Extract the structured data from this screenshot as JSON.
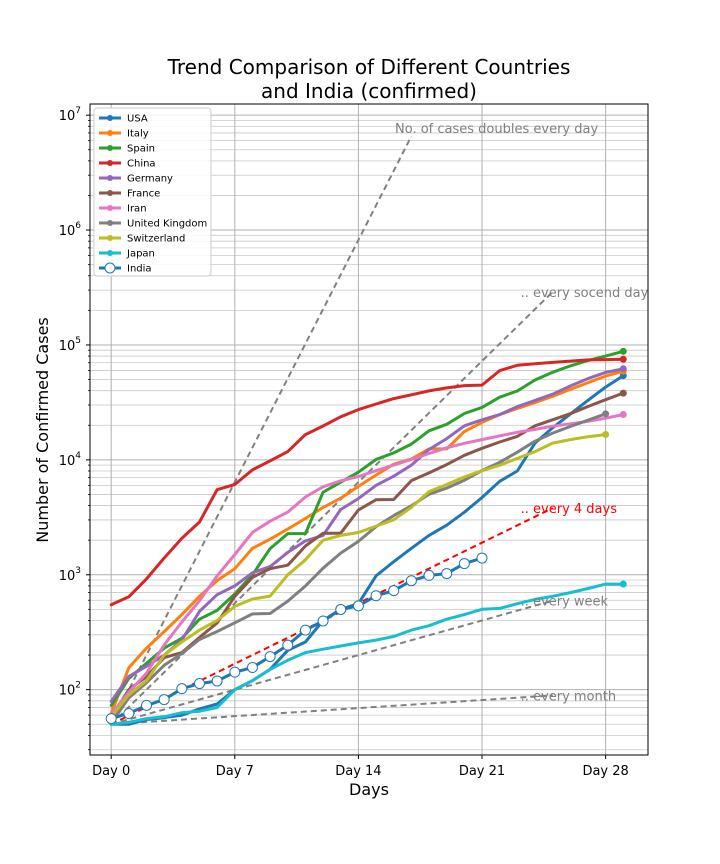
{
  "chart_data": {
    "type": "line",
    "title_lines": [
      "Trend Comparison of Different Countries",
      "and India (confirmed)"
    ],
    "xlabel": "Days",
    "ylabel": "Number of Confirmed Cases",
    "yscale": "log",
    "xlim": [
      -1.2,
      30.4
    ],
    "ylim": [
      27,
      12500000
    ],
    "grid": true,
    "legend_position": "upper-left",
    "x_ticks": [
      {
        "value": 0,
        "label": "Day 0"
      },
      {
        "value": 7,
        "label": "Day 7"
      },
      {
        "value": 14,
        "label": "Day 14"
      },
      {
        "value": 21,
        "label": "Day 21"
      },
      {
        "value": 28,
        "label": "Day 28"
      }
    ],
    "y_ticks": [
      {
        "value": 100,
        "base": "10",
        "exp": "2"
      },
      {
        "value": 1000,
        "base": "10",
        "exp": "3"
      },
      {
        "value": 10000,
        "base": "10",
        "exp": "4"
      },
      {
        "value": 100000,
        "base": "10",
        "exp": "5"
      },
      {
        "value": 1000000,
        "base": "10",
        "exp": "6"
      },
      {
        "value": 10000000,
        "base": "10",
        "exp": "7"
      }
    ],
    "series": [
      {
        "name": "USA",
        "color": "#1f77b4",
        "x": [
          0,
          1,
          2,
          3,
          4,
          5,
          6,
          7,
          8,
          9,
          10,
          11,
          12,
          13,
          14,
          15,
          16,
          17,
          18,
          19,
          20,
          21,
          22,
          23,
          24,
          25,
          26,
          27,
          28,
          29
        ],
        "values": [
          50,
          50,
          55,
          57,
          60,
          68,
          75,
          100,
          120,
          150,
          220,
          260,
          400,
          500,
          560,
          980,
          1300,
          1700,
          2200,
          2700,
          3500,
          4700,
          6500,
          8000,
          14000,
          19000,
          25000,
          33000,
          43000,
          54000
        ]
      },
      {
        "name": "Italy",
        "color": "#ff7f0e",
        "x": [
          0,
          1,
          2,
          3,
          4,
          5,
          6,
          7,
          8,
          9,
          10,
          11,
          12,
          13,
          14,
          15,
          16,
          17,
          18,
          19,
          20,
          21,
          22,
          23,
          24,
          25,
          26,
          27,
          28,
          29
        ],
        "values": [
          62,
          155,
          230,
          320,
          450,
          650,
          890,
          1130,
          1700,
          2040,
          2500,
          3090,
          3860,
          4640,
          5880,
          7380,
          9170,
          10150,
          12460,
          12460,
          17660,
          21160,
          24750,
          27980,
          31510,
          35710,
          41040,
          47020,
          53580,
          59140
        ]
      },
      {
        "name": "Spain",
        "color": "#2ca02c",
        "x": [
          0,
          1,
          2,
          3,
          4,
          5,
          6,
          7,
          8,
          9,
          10,
          11,
          12,
          13,
          14,
          15,
          16,
          17,
          18,
          19,
          20,
          21,
          22,
          23,
          24,
          25,
          26,
          27,
          28,
          29
        ],
        "values": [
          73,
          125,
          170,
          230,
          280,
          410,
          490,
          680,
          1000,
          1690,
          2280,
          2280,
          5230,
          6390,
          7800,
          10100,
          11500,
          13700,
          17900,
          20400,
          25300,
          28600,
          35100,
          39700,
          49500,
          57800,
          65700,
          73200,
          80000,
          88000
        ]
      },
      {
        "name": "China",
        "color": "#d62728",
        "x": [
          0,
          1,
          2,
          3,
          4,
          5,
          6,
          7,
          8,
          9,
          10,
          11,
          12,
          13,
          14,
          15,
          16,
          17,
          18,
          19,
          20,
          21,
          22,
          23,
          24,
          25,
          26,
          27,
          28,
          29
        ],
        "values": [
          548,
          643,
          920,
          1400,
          2070,
          2880,
          5500,
          6100,
          8200,
          9800,
          11800,
          16600,
          19700,
          23700,
          27400,
          30600,
          34100,
          36800,
          39800,
          42300,
          44300,
          44700,
          59800,
          66500,
          68500,
          70500,
          72400,
          74100,
          74600,
          75000
        ]
      },
      {
        "name": "Germany",
        "color": "#9467bd",
        "x": [
          0,
          1,
          2,
          3,
          4,
          5,
          6,
          7,
          8,
          9,
          10,
          11,
          12,
          13,
          14,
          15,
          16,
          17,
          18,
          19,
          20,
          21,
          22,
          23,
          24,
          25,
          26,
          27,
          28,
          29
        ],
        "values": [
          79,
          130,
          160,
          200,
          270,
          480,
          670,
          800,
          1040,
          1180,
          1565,
          1970,
          2200,
          3700,
          4600,
          6000,
          7200,
          9000,
          12300,
          15300,
          19800,
          22300,
          24800,
          29000,
          32900,
          37300,
          43900,
          50900,
          57700,
          62000
        ]
      },
      {
        "name": "France",
        "color": "#8c564b",
        "x": [
          0,
          1,
          2,
          3,
          4,
          5,
          6,
          7,
          8,
          9,
          10,
          11,
          12,
          13,
          14,
          15,
          16,
          17,
          18,
          19,
          20,
          21,
          22,
          23,
          24,
          25,
          26,
          27,
          28,
          29
        ],
        "values": [
          57,
          100,
          130,
          190,
          210,
          285,
          380,
          650,
          950,
          1130,
          1210,
          1780,
          2300,
          2300,
          3660,
          4500,
          4520,
          6600,
          7700,
          9100,
          10950,
          12600,
          14300,
          16000,
          19800,
          22300,
          25200,
          29100,
          33400,
          38100
        ]
      },
      {
        "name": "Iran",
        "color": "#e377c2",
        "x": [
          0,
          1,
          2,
          3,
          4,
          5,
          6,
          7,
          8,
          9,
          10,
          11,
          12,
          13,
          14,
          15,
          16,
          17,
          18,
          19,
          20,
          21,
          22,
          23,
          24,
          25,
          26,
          27,
          28,
          29
        ],
        "values": [
          61,
          95,
          139,
          245,
          388,
          593,
          978,
          1501,
          2336,
          2922,
          3513,
          4747,
          5823,
          6566,
          7161,
          8042,
          9000,
          10075,
          11364,
          12729,
          13938,
          14991,
          16169,
          17361,
          18407,
          19644,
          20610,
          21638,
          23049,
          24811
        ]
      },
      {
        "name": "United Kingdom",
        "color": "#7f7f7f",
        "x": [
          0,
          1,
          2,
          3,
          4,
          5,
          6,
          7,
          8,
          9,
          10,
          11,
          12,
          13,
          14,
          15,
          16,
          17,
          18,
          19,
          20,
          21,
          22,
          23,
          24,
          25,
          26,
          27,
          28
        ],
        "values": [
          51,
          85,
          115,
          163,
          206,
          273,
          321,
          382,
          456,
          460,
          590,
          798,
          1140,
          1543,
          1950,
          2626,
          3269,
          3983,
          5018,
          5683,
          6650,
          8077,
          9529,
          11658,
          14543,
          17089,
          19522,
          22141,
          25150
        ]
      },
      {
        "name": "Switzerland",
        "color": "#bcbd22",
        "x": [
          0,
          1,
          2,
          3,
          4,
          5,
          6,
          7,
          8,
          9,
          10,
          11,
          12,
          13,
          14,
          15,
          16,
          17,
          18,
          19,
          20,
          21,
          22,
          23,
          24,
          25,
          26,
          27,
          28
        ],
        "values": [
          58,
          90,
          120,
          200,
          260,
          330,
          400,
          530,
          615,
          652,
          1000,
          1350,
          2000,
          2200,
          2330,
          2650,
          3010,
          3860,
          5290,
          6100,
          7100,
          8050,
          8990,
          10300,
          11800,
          14000,
          15000,
          15900,
          16600
        ]
      },
      {
        "name": "Japan",
        "color": "#17becf",
        "x": [
          0,
          1,
          2,
          3,
          4,
          5,
          6,
          7,
          8,
          9,
          10,
          11,
          12,
          13,
          14,
          15,
          16,
          17,
          18,
          19,
          20,
          21,
          22,
          23,
          24,
          25,
          26,
          27,
          28,
          29
        ],
        "values": [
          50,
          52,
          56,
          58,
          63,
          65,
          70,
          100,
          120,
          150,
          180,
          210,
          225,
          240,
          255,
          270,
          290,
          330,
          360,
          410,
          450,
          500,
          510,
          560,
          610,
          650,
          700,
          760,
          830,
          830
        ]
      },
      {
        "name": "India",
        "color": "#1f77b4",
        "marker": "open-circle",
        "x": [
          0,
          1,
          2,
          3,
          4,
          5,
          6,
          7,
          8,
          9,
          10,
          11,
          12,
          13,
          14,
          15,
          16,
          17,
          18,
          19,
          20,
          21
        ],
        "values": [
          56,
          62,
          73,
          82,
          102,
          113,
          119,
          142,
          156,
          194,
          244,
          330,
          396,
          499,
          536,
          657,
          727,
          887,
          987,
          1024,
          1251,
          1397
        ]
      }
    ],
    "reference_lines": [
      {
        "label": "No. of cases doubles every day",
        "doubling_days": 1,
        "start": 50,
        "x_end": 17,
        "color": "#808080"
      },
      {
        "label": ".. every socend day",
        "doubling_days": 2,
        "start": 50,
        "x_end": 25,
        "color": "#808080"
      },
      {
        "label": ".. every 4 days",
        "doubling_days": 4,
        "start": 50,
        "x_end": 25,
        "color": "#ff0000"
      },
      {
        "label": ".. every week",
        "doubling_days": 7,
        "start": 50,
        "x_end": 25,
        "color": "#808080"
      },
      {
        "label": ".. every month",
        "doubling_days": 30,
        "start": 50,
        "x_end": 25,
        "color": "#808080"
      }
    ]
  }
}
